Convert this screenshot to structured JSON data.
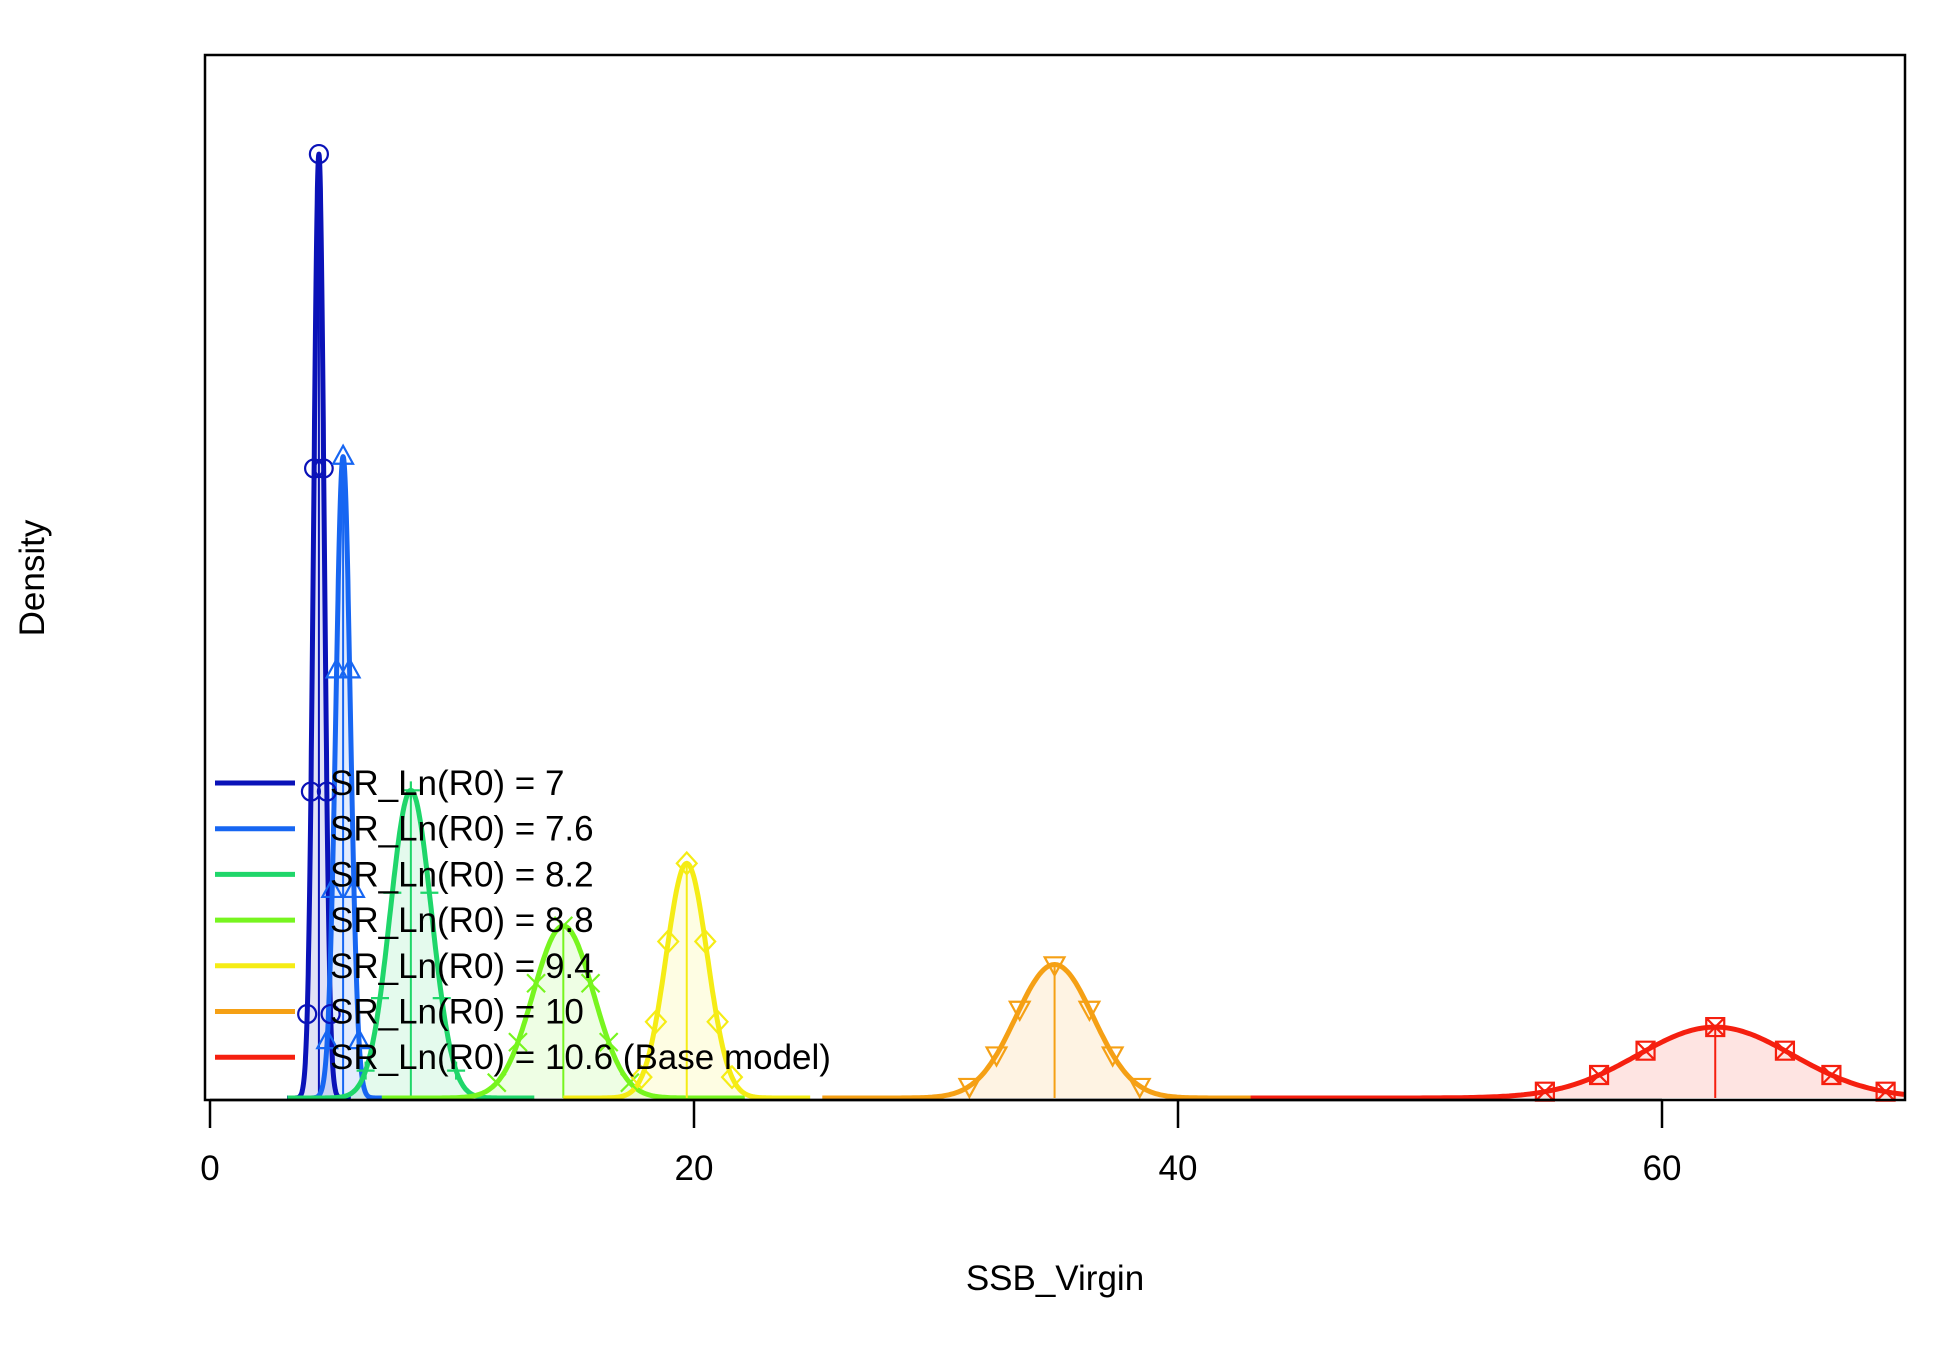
{
  "chart_data": {
    "type": "line",
    "title": "",
    "xlabel": "SSB_Virgin",
    "ylabel": "Density",
    "xlim": [
      0,
      70
    ],
    "x_ticks": [
      0,
      20,
      40,
      60
    ],
    "x_tick_labels": [
      "0",
      "20",
      "40",
      "60"
    ],
    "y_ticks_shown": false,
    "grid": false,
    "legend_position": "bottom-left",
    "series": [
      {
        "name": "SR_Ln(R0) =  7",
        "mean": 4.5,
        "sd": 0.22,
        "peak_rel": 0.905,
        "color": "#0A12B8",
        "marker": "circle"
      },
      {
        "name": "SR_Ln(R0) =  7.6",
        "mean": 5.5,
        "sd": 0.3,
        "peak_rel": 0.615,
        "color": "#1766F2",
        "marker": "triangle-up"
      },
      {
        "name": "SR_Ln(R0) =  8.2",
        "mean": 8.3,
        "sd": 0.85,
        "peak_rel": 0.295,
        "color": "#1FD66A",
        "marker": "plus"
      },
      {
        "name": "SR_Ln(R0) =  8.8",
        "mean": 14.6,
        "sd": 1.25,
        "peak_rel": 0.165,
        "color": "#77F51F",
        "marker": "cross"
      },
      {
        "name": "SR_Ln(R0) =  9.4",
        "mean": 19.7,
        "sd": 0.85,
        "peak_rel": 0.225,
        "color": "#F5EC15",
        "marker": "diamond"
      },
      {
        "name": "SR_Ln(R0) =  10",
        "mean": 34.9,
        "sd": 1.6,
        "peak_rel": 0.128,
        "color": "#F5A015",
        "marker": "triangle-down"
      },
      {
        "name": "SR_Ln(R0) =  10.6 (Base model)",
        "mean": 62.2,
        "sd": 3.2,
        "peak_rel": 0.068,
        "color": "#F51F0F",
        "marker": "square-x"
      }
    ]
  }
}
